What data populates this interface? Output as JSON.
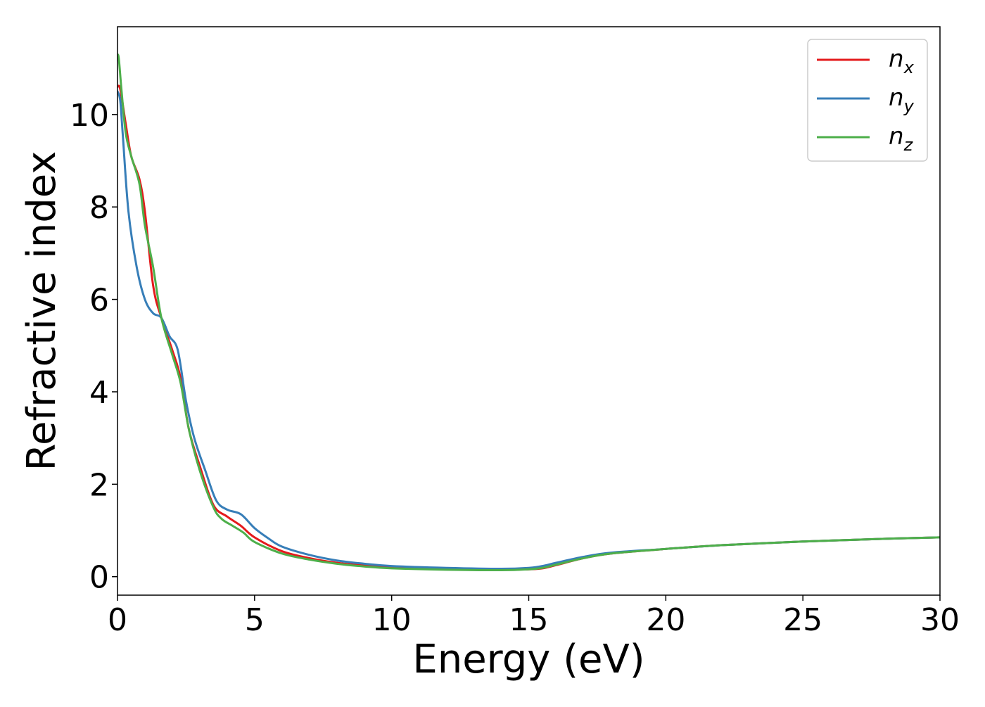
{
  "chart_data": {
    "type": "line",
    "title": "",
    "xlabel": "Energy (eV)",
    "ylabel": "Refractive index",
    "xlim": [
      0,
      30
    ],
    "ylim": [
      -0.4,
      11.9
    ],
    "xticks": [
      0,
      5,
      10,
      15,
      20,
      25,
      30
    ],
    "yticks": [
      0,
      2,
      4,
      6,
      8,
      10
    ],
    "grid": false,
    "legend_position": "top-right",
    "series": [
      {
        "name": "n",
        "subscript": "x",
        "color": "#e41a1c",
        "x": [
          0,
          0.1,
          0.3,
          0.5,
          0.8,
          1.0,
          1.3,
          1.6,
          2.0,
          2.3,
          2.6,
          3.0,
          3.5,
          4.0,
          4.5,
          5.0,
          6.0,
          7.0,
          8.0,
          9.0,
          10.0,
          12.0,
          14.0,
          15.0,
          15.5,
          16.0,
          17.0,
          18.0,
          20.0,
          22.0,
          25.0,
          28.0,
          30.0
        ],
        "y": [
          10.6,
          10.55,
          9.8,
          9.1,
          8.6,
          7.9,
          6.3,
          5.6,
          4.9,
          4.3,
          3.2,
          2.4,
          1.55,
          1.3,
          1.1,
          0.85,
          0.55,
          0.4,
          0.3,
          0.24,
          0.2,
          0.17,
          0.15,
          0.16,
          0.18,
          0.25,
          0.4,
          0.5,
          0.6,
          0.68,
          0.76,
          0.82,
          0.85
        ]
      },
      {
        "name": "n",
        "subscript": "y",
        "color": "#377eb8",
        "x": [
          0,
          0.1,
          0.2,
          0.4,
          0.7,
          1.0,
          1.3,
          1.6,
          1.9,
          2.2,
          2.5,
          2.8,
          3.2,
          3.6,
          4.0,
          4.5,
          5.0,
          5.5,
          6.0,
          7.0,
          8.0,
          9.0,
          10.0,
          12.0,
          14.0,
          15.0,
          15.5,
          16.0,
          17.0,
          18.0,
          20.0,
          22.0,
          25.0,
          28.0,
          30.0
        ],
        "y": [
          10.5,
          10.3,
          9.5,
          7.9,
          6.7,
          6.0,
          5.7,
          5.6,
          5.2,
          4.9,
          3.8,
          3.0,
          2.3,
          1.65,
          1.45,
          1.35,
          1.05,
          0.83,
          0.65,
          0.47,
          0.35,
          0.28,
          0.23,
          0.19,
          0.17,
          0.19,
          0.23,
          0.3,
          0.43,
          0.52,
          0.6,
          0.68,
          0.76,
          0.82,
          0.85
        ]
      },
      {
        "name": "n",
        "subscript": "z",
        "color": "#4daf4a",
        "x": [
          0,
          0.05,
          0.15,
          0.3,
          0.5,
          0.8,
          1.0,
          1.3,
          1.6,
          2.0,
          2.3,
          2.6,
          3.0,
          3.5,
          3.8,
          4.2,
          4.6,
          5.0,
          6.0,
          7.0,
          8.0,
          9.0,
          10.0,
          12.0,
          14.0,
          15.0,
          15.5,
          16.0,
          17.0,
          18.0,
          20.0,
          22.0,
          25.0,
          28.0,
          30.0
        ],
        "y": [
          11.3,
          11.2,
          10.5,
          9.6,
          9.1,
          8.5,
          7.6,
          6.7,
          5.6,
          4.8,
          4.2,
          3.2,
          2.3,
          1.5,
          1.25,
          1.1,
          0.95,
          0.75,
          0.5,
          0.37,
          0.28,
          0.22,
          0.18,
          0.15,
          0.14,
          0.16,
          0.19,
          0.26,
          0.4,
          0.5,
          0.6,
          0.68,
          0.76,
          0.82,
          0.85
        ]
      }
    ]
  }
}
